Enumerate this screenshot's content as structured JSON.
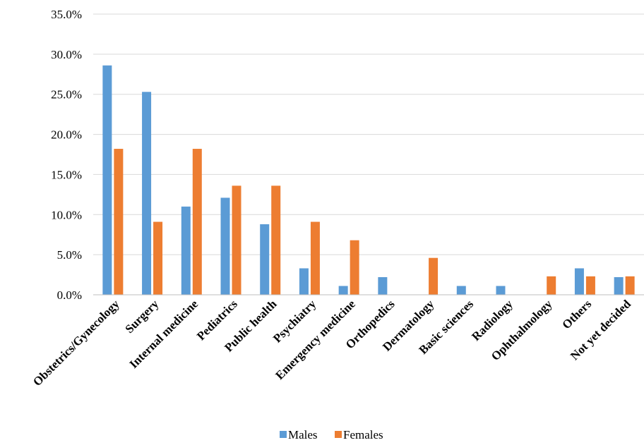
{
  "chart_data": {
    "type": "bar",
    "categories": [
      "Obstetrics/Gynecology",
      "Surgery",
      "Internal medicine",
      "Pediatrics",
      "Public health",
      "Psychiatry",
      "Emergency medicine",
      "Orthopedics",
      "Dermatology",
      "Basic sciences",
      "Radiology",
      "Ophthalmology",
      "Others",
      "Not yet decided"
    ],
    "series": [
      {
        "name": "Males",
        "color": "#5b9bd5",
        "values": [
          28.6,
          25.3,
          11.0,
          12.1,
          8.8,
          3.3,
          1.1,
          2.2,
          0.0,
          1.1,
          1.1,
          0.0,
          3.3,
          2.2
        ]
      },
      {
        "name": "Females",
        "color": "#ed7d31",
        "values": [
          18.2,
          9.1,
          18.2,
          13.6,
          13.6,
          9.1,
          6.8,
          0.0,
          4.6,
          0.0,
          0.0,
          2.3,
          2.3,
          2.3
        ]
      }
    ],
    "ylim": [
      0,
      35
    ],
    "yticks": [
      "0.0%",
      "5.0%",
      "10.0%",
      "15.0%",
      "20.0%",
      "25.0%",
      "30.0%",
      "35.0%"
    ],
    "grid": true,
    "legend_position": "bottom",
    "xlabel": "",
    "ylabel": ""
  }
}
